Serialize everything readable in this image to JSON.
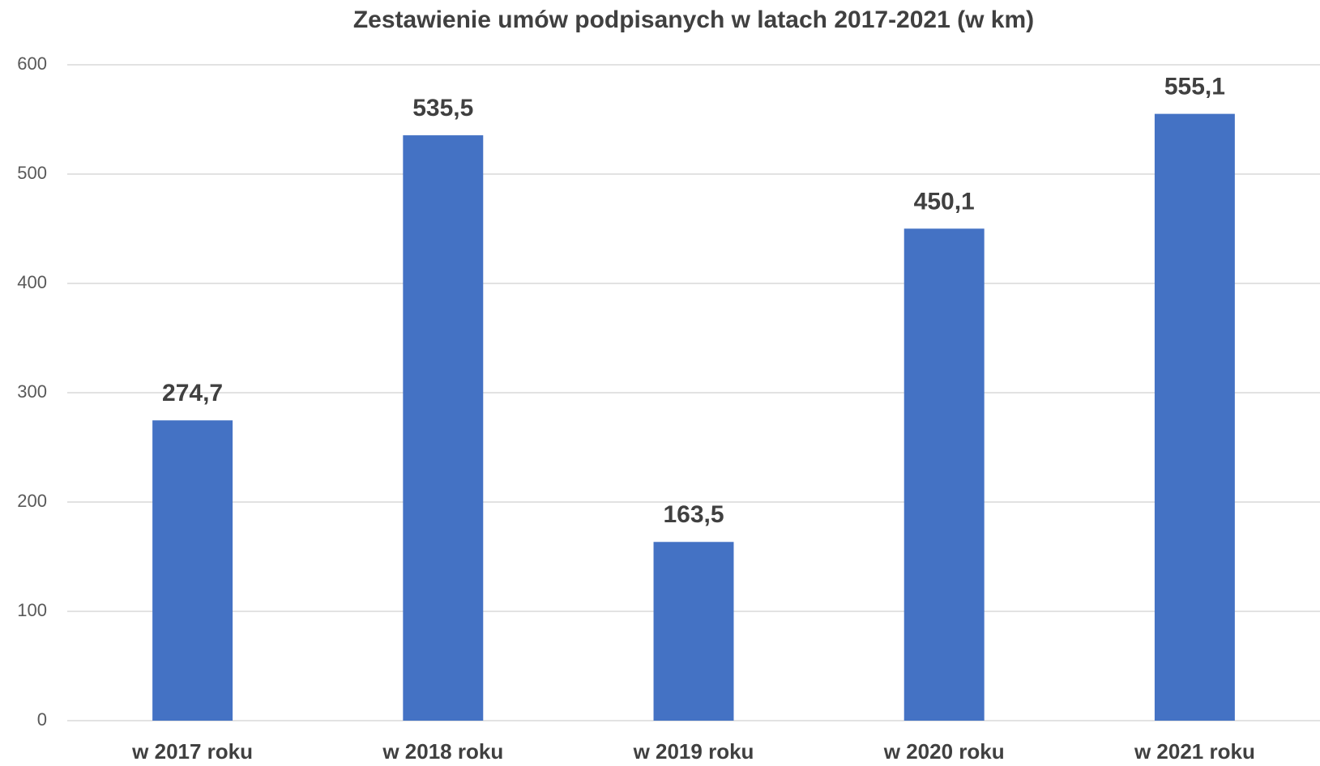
{
  "chart_data": {
    "type": "bar",
    "title": "Zestawienie umów podpisanych w latach 2017-2021 (w km)",
    "categories": [
      "w 2017 roku",
      "w 2018 roku",
      "w 2019 roku",
      "w 2020 roku",
      "w 2021 roku"
    ],
    "values": [
      274.7,
      535.5,
      163.5,
      450.1,
      555.1
    ],
    "value_labels": [
      "274,7",
      "535,5",
      "163,5",
      "450,1",
      "555,1"
    ],
    "color": "#4472c4",
    "ylim": [
      0,
      600
    ],
    "yticks": [
      0,
      100,
      200,
      300,
      400,
      500,
      600
    ],
    "grid": true
  }
}
